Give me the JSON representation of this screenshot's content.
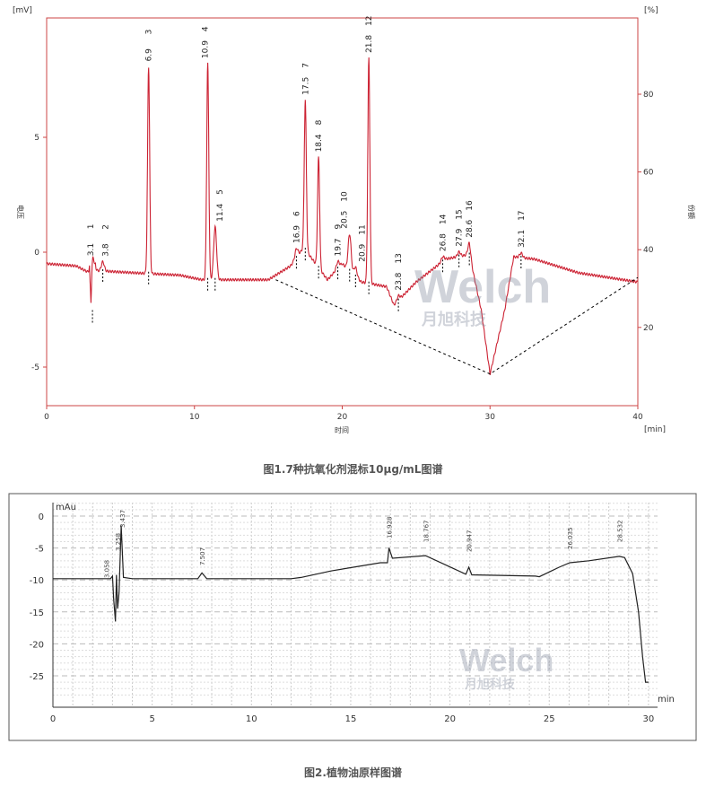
{
  "chart_data": [
    {
      "type": "line",
      "xlabel": "时间",
      "ylabel": "电压",
      "y2label": "份额",
      "x_unit": "[min]",
      "y_unit": "[mV]",
      "y2_unit": "[%]",
      "xlim": [
        0,
        40
      ],
      "ylim": [
        -6.5,
        10.5
      ],
      "y2lim": [
        5,
        100
      ],
      "xticks": [
        0,
        10,
        20,
        30,
        40
      ],
      "yticks": [
        -5,
        0,
        5
      ],
      "y2ticks": [
        20,
        40,
        60,
        80
      ],
      "grid": false,
      "color": "#cc2233",
      "peaks": [
        {
          "id": "1",
          "rt": "3.1",
          "x": 3.1,
          "h": 2.2
        },
        {
          "id": "2",
          "rt": "3.8",
          "x": 3.8,
          "h": 0.4
        },
        {
          "id": "3",
          "rt": "6.9",
          "x": 6.9,
          "h": 9.0
        },
        {
          "id": "4",
          "rt": "10.9",
          "x": 10.9,
          "h": 9.4
        },
        {
          "id": "5",
          "rt": "11.4",
          "x": 11.4,
          "h": 2.3
        },
        {
          "id": "6",
          "rt": "16.9",
          "x": 16.9,
          "h": 0.4
        },
        {
          "id": "7",
          "rt": "17.5",
          "x": 17.5,
          "h": 6.5
        },
        {
          "id": "8",
          "rt": "18.4",
          "x": 18.4,
          "h": 4.8
        },
        {
          "id": "9",
          "rt": "19.7",
          "x": 19.7,
          "h": 0.3
        },
        {
          "id": "10",
          "rt": "20.5",
          "x": 20.5,
          "h": 1.6
        },
        {
          "id": "11",
          "rt": "20.9",
          "x": 20.9,
          "h": 0.4
        },
        {
          "id": "12",
          "rt": "21.8",
          "x": 21.8,
          "h": 9.8
        },
        {
          "id": "13",
          "rt": "23.8",
          "x": 23.8,
          "h": 0.2
        },
        {
          "id": "14",
          "rt": "26.8",
          "x": 26.8,
          "h": 0.2
        },
        {
          "id": "15",
          "rt": "27.9",
          "x": 27.9,
          "h": 0.2
        },
        {
          "id": "16",
          "rt": "28.6",
          "x": 28.6,
          "h": 0.5
        },
        {
          "id": "17",
          "rt": "32.1",
          "x": 32.1,
          "h": 0.2
        }
      ],
      "baseline": [
        [
          0,
          -0.5
        ],
        [
          2,
          -0.6
        ],
        [
          2.9,
          -0.9
        ],
        [
          3.0,
          -3.5
        ],
        [
          3.3,
          -0.8
        ],
        [
          6,
          -0.9
        ],
        [
          9,
          -1.0
        ],
        [
          10.5,
          -1.2
        ],
        [
          15,
          -1.2
        ],
        [
          16.5,
          -0.6
        ],
        [
          17.4,
          0.2
        ],
        [
          19,
          -1.2
        ],
        [
          20,
          -0.5
        ],
        [
          21.3,
          -1.3
        ],
        [
          23,
          -1.5
        ],
        [
          23.5,
          -2.3
        ],
        [
          25,
          -1.3
        ],
        [
          27,
          -0.3
        ],
        [
          28.6,
          -0.1
        ],
        [
          29.4,
          -2.5
        ],
        [
          30,
          -5.3
        ],
        [
          31,
          -2.5
        ],
        [
          31.6,
          -0.2
        ],
        [
          33,
          -0.3
        ],
        [
          36,
          -0.9
        ],
        [
          40,
          -1.3
        ]
      ]
    },
    {
      "type": "line",
      "xlabel": "min",
      "ylabel": "mAu",
      "xlim": [
        0,
        30.5
      ],
      "ylim": [
        -28,
        2
      ],
      "xticks": [
        0,
        5,
        10,
        15,
        20,
        25,
        30
      ],
      "yticks": [
        0,
        -5,
        -10,
        -15,
        -20,
        -25
      ],
      "grid": true,
      "color": "#222222",
      "peak_labels": [
        "3.058",
        "3.258",
        "3.437",
        "7.507",
        "16.928",
        "18.767",
        "20.947",
        "26.035",
        "28.532"
      ],
      "points": [
        [
          0,
          -9.8
        ],
        [
          2.9,
          -9.8
        ],
        [
          3.0,
          -9.4
        ],
        [
          3.06,
          -13
        ],
        [
          3.15,
          -16.5
        ],
        [
          3.2,
          -9.2
        ],
        [
          3.26,
          -14.5
        ],
        [
          3.33,
          -12
        ],
        [
          3.437,
          -1.5
        ],
        [
          3.55,
          -9.6
        ],
        [
          4,
          -9.8
        ],
        [
          7.3,
          -9.8
        ],
        [
          7.507,
          -8.9
        ],
        [
          7.75,
          -9.8
        ],
        [
          12,
          -9.8
        ],
        [
          12.5,
          -9.6
        ],
        [
          14,
          -8.6
        ],
        [
          16.5,
          -7.3
        ],
        [
          16.85,
          -7.3
        ],
        [
          16.928,
          -5
        ],
        [
          17.1,
          -6.6
        ],
        [
          18.767,
          -6.2
        ],
        [
          20.8,
          -9.1
        ],
        [
          20.947,
          -8
        ],
        [
          21.1,
          -9.2
        ],
        [
          24.3,
          -9.4
        ],
        [
          24.5,
          -9.5
        ],
        [
          25.5,
          -8
        ],
        [
          26.035,
          -7.3
        ],
        [
          27,
          -7
        ],
        [
          28.532,
          -6.3
        ],
        [
          28.8,
          -6.5
        ],
        [
          29.2,
          -9
        ],
        [
          29.5,
          -15
        ],
        [
          29.7,
          -22
        ],
        [
          29.85,
          -26
        ],
        [
          30,
          -26
        ]
      ]
    }
  ],
  "captions": {
    "fig1": "图1.7种抗氧化剂混标10μg/mL图谱",
    "fig2": "图2.植物油原样图谱"
  },
  "watermark": {
    "brand": "Welch",
    "sub": "月旭科技"
  }
}
